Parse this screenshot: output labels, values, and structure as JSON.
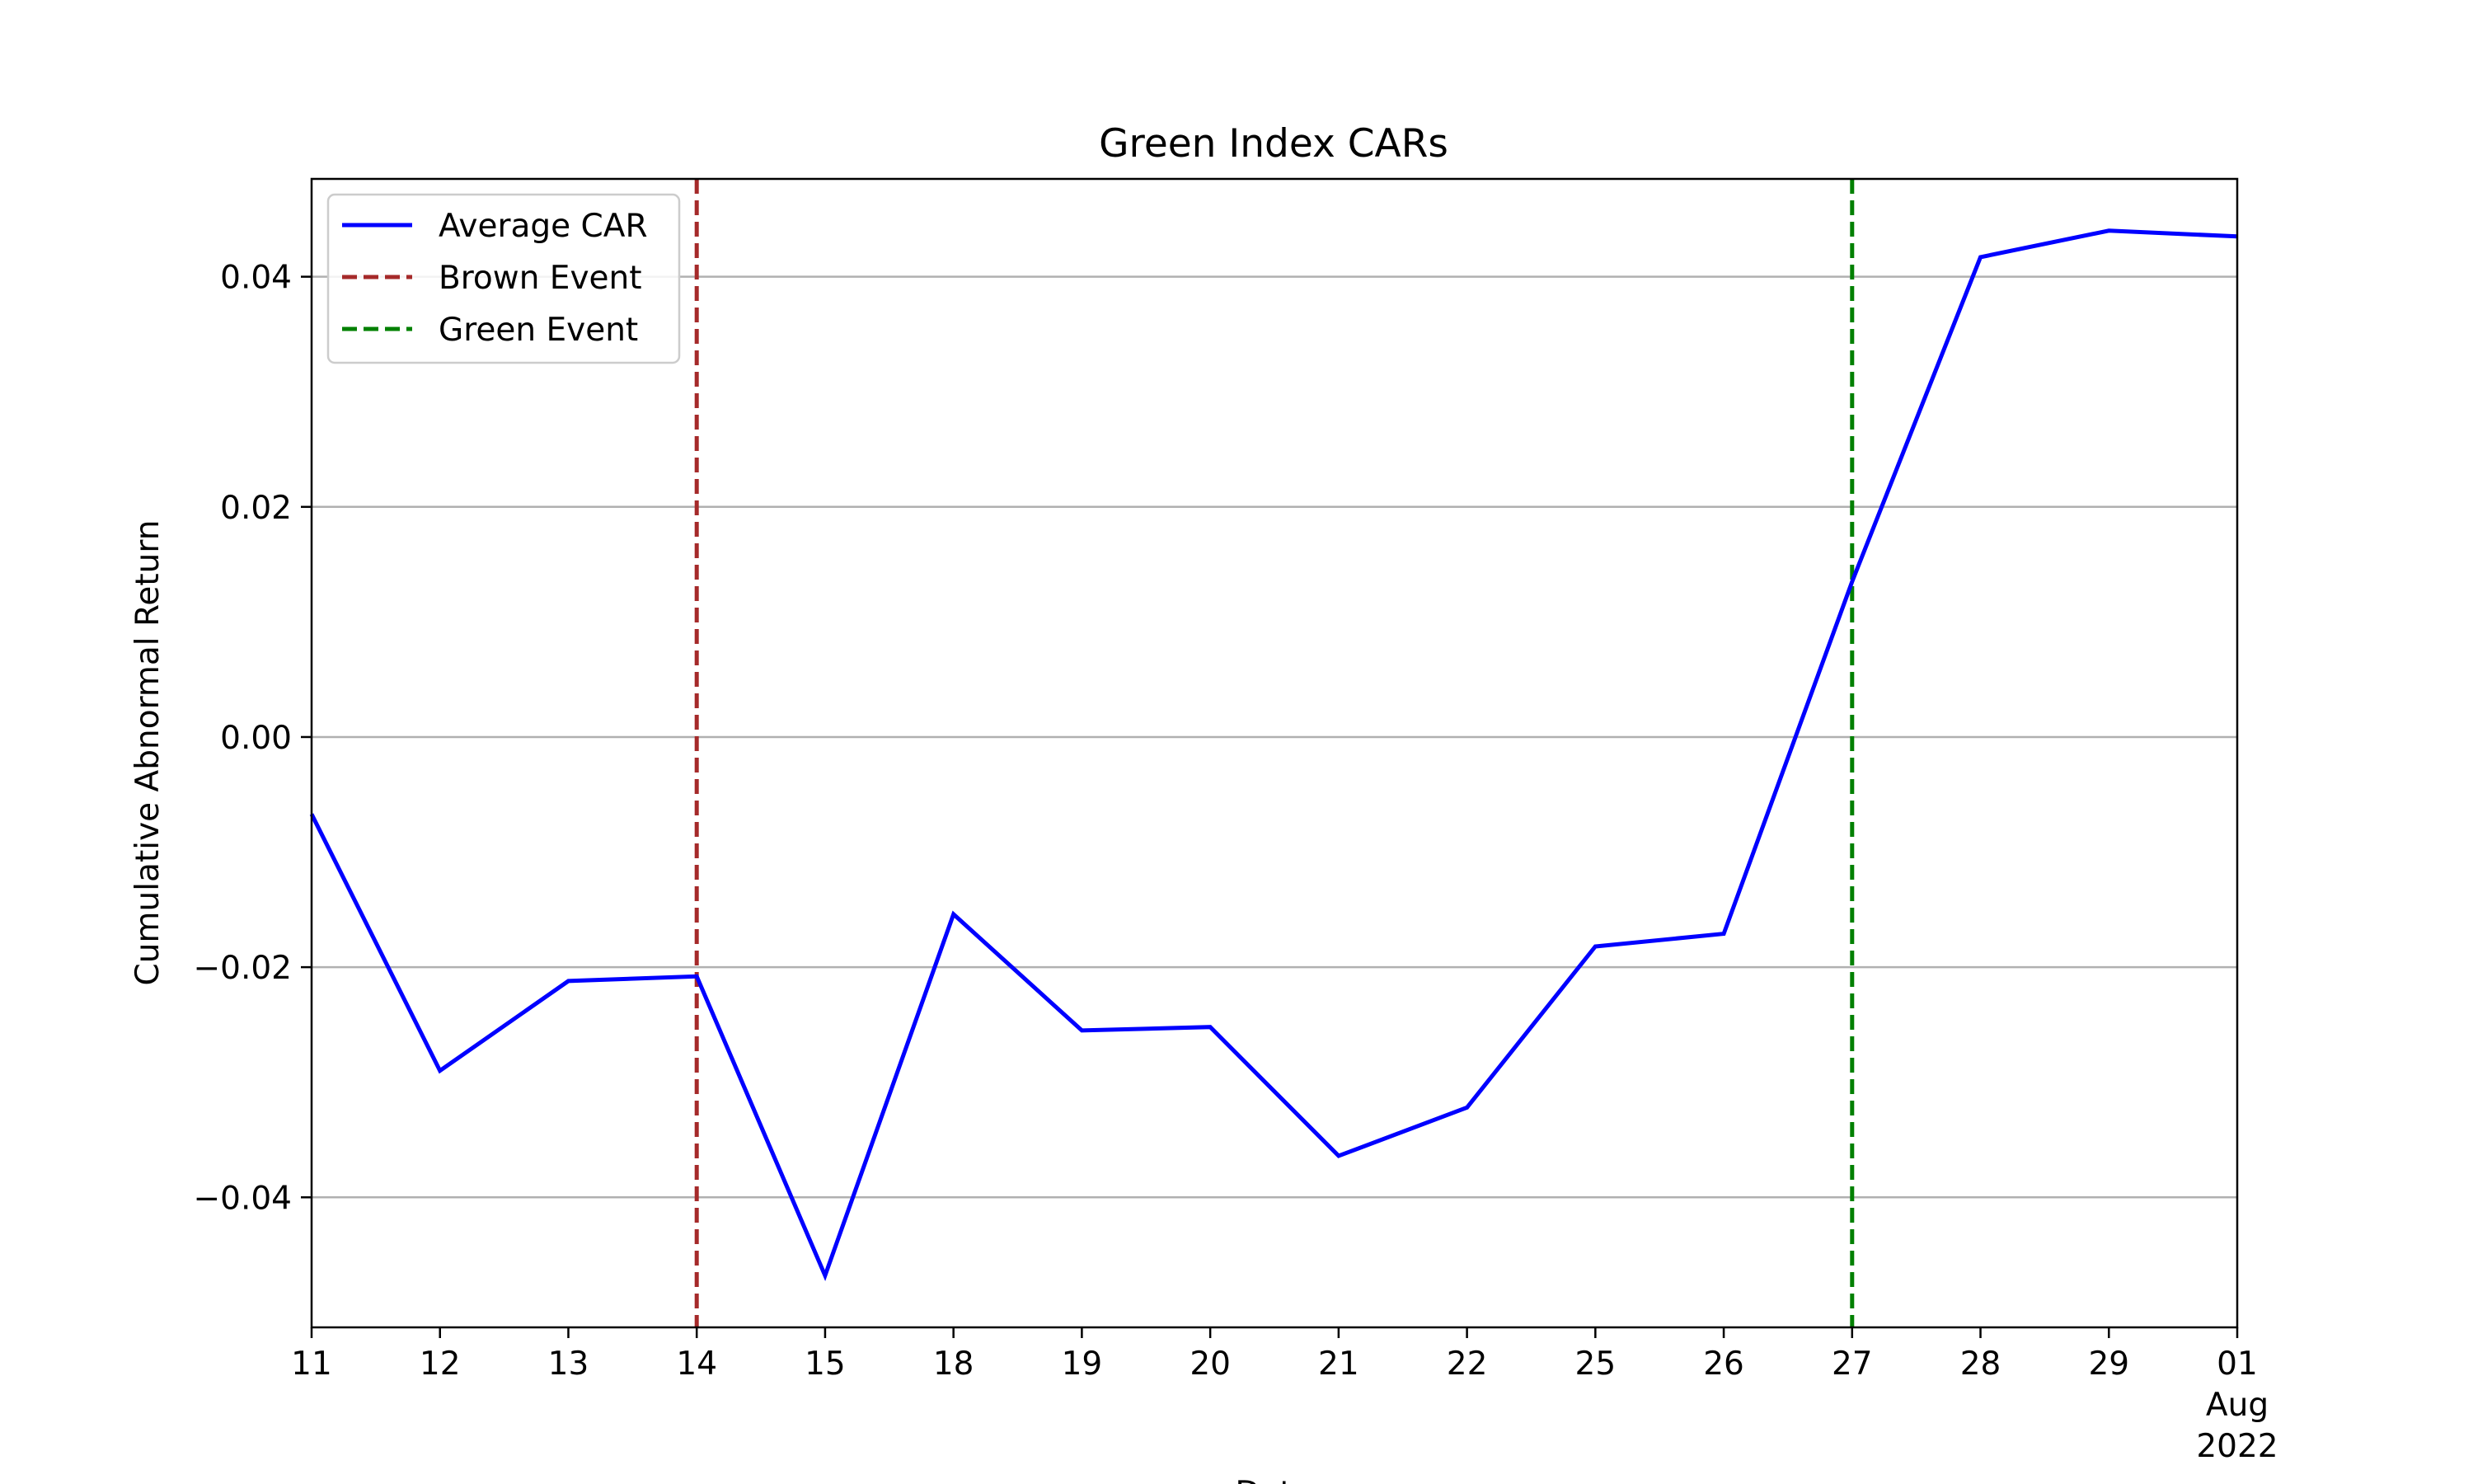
{
  "chart_data": {
    "type": "line",
    "title": "Green Index CARs",
    "xlabel": "Date",
    "ylabel": "Cumulative Abnormal Return",
    "x": [
      "2022-07-11",
      "2022-07-12",
      "2022-07-13",
      "2022-07-14",
      "2022-07-15",
      "2022-07-18",
      "2022-07-19",
      "2022-07-20",
      "2022-07-21",
      "2022-07-22",
      "2022-07-25",
      "2022-07-26",
      "2022-07-27",
      "2022-07-28",
      "2022-07-29",
      "2022-08-01"
    ],
    "x_tick_labels": [
      "11",
      "12",
      "13",
      "14",
      "15",
      "18",
      "19",
      "20",
      "21",
      "22",
      "25",
      "26",
      "27",
      "28",
      "29",
      "01"
    ],
    "x_tick_sublabels": {
      "month": "Aug",
      "year": "2022"
    },
    "series": [
      {
        "name": "Average CAR",
        "color": "#0000ff",
        "style": "solid",
        "values": [
          -0.0067,
          -0.029,
          -0.0212,
          -0.0208,
          -0.0468,
          -0.0154,
          -0.0255,
          -0.0252,
          -0.0364,
          -0.0322,
          -0.0182,
          -0.0171,
          0.0135,
          0.0417,
          0.044,
          0.0435
        ]
      }
    ],
    "vlines": [
      {
        "name": "Brown Event",
        "x": "2022-07-14",
        "color": "#a52a2a",
        "style": "dashed"
      },
      {
        "name": "Green Event",
        "x": "2022-07-27",
        "color": "#008000",
        "style": "dashed"
      }
    ],
    "ylim": [
      -0.0513,
      0.0485
    ],
    "y_ticks": [
      -0.04,
      -0.02,
      0.0,
      0.02,
      0.04
    ],
    "y_tick_labels": [
      "−0.04",
      "−0.02",
      "0.00",
      "0.02",
      "0.04"
    ],
    "grid": "horizontal",
    "legend_position": "top-left"
  }
}
